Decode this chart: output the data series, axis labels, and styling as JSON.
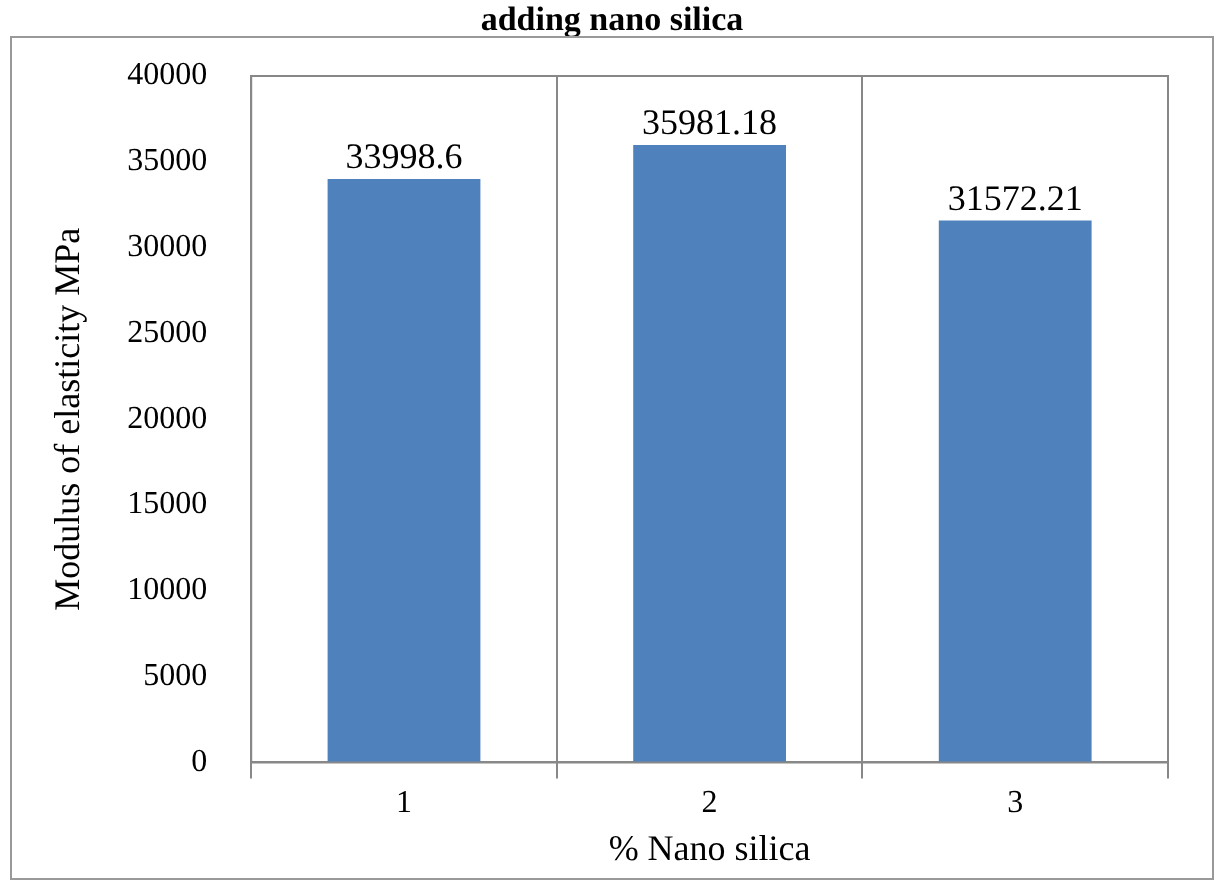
{
  "chart_data": {
    "type": "bar",
    "title": "adding nano silica",
    "xlabel": "% Nano silica",
    "ylabel": "Modulus of elasticity MPa",
    "categories": [
      "1",
      "2",
      "3"
    ],
    "values": [
      33998.6,
      35981.18,
      31572.21
    ],
    "color": "#4f81bd",
    "ylim": [
      0,
      40000
    ],
    "yticks": [
      0,
      5000,
      10000,
      15000,
      20000,
      25000,
      30000,
      35000,
      40000
    ],
    "grid": "x",
    "data_labels": true,
    "legend": false
  }
}
